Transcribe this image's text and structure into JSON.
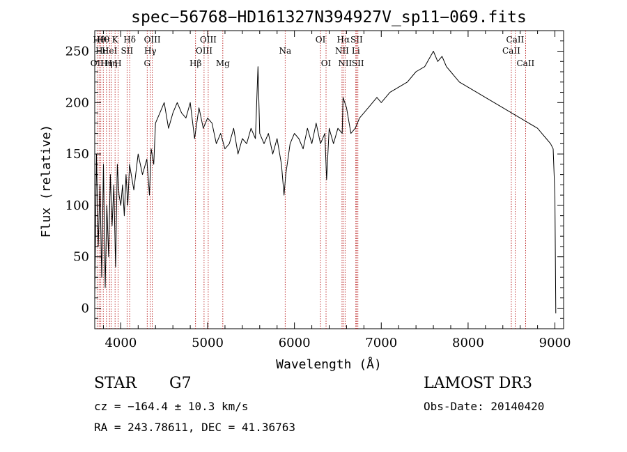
{
  "info": {
    "object_class": "STAR",
    "subclass": "G7",
    "survey": "LAMOST DR3",
    "cz": "cz = −164.4 ± 10.3 km/s",
    "obs_date": "Obs-Date: 20140420",
    "coords": "RA = 243.78611, DEC =  41.36763"
  },
  "chart_data": {
    "type": "line",
    "title": "spec−56768−HD161327N394927V_sp11−069.fits",
    "xlabel": "Wavelength (Å)",
    "ylabel": "Flux (relative)",
    "xlim": [
      3700,
      9100
    ],
    "ylim": [
      -20,
      270
    ],
    "xticks": [
      4000,
      5000,
      6000,
      7000,
      8000,
      9000
    ],
    "yticks": [
      0,
      50,
      100,
      150,
      200,
      250
    ],
    "grid": false,
    "colors": {
      "line": "#000000",
      "marker": "#b00000"
    },
    "series": [
      {
        "x": [
          3700,
          3720,
          3740,
          3760,
          3780,
          3800,
          3820,
          3840,
          3860,
          3880,
          3900,
          3920,
          3940,
          3960,
          3980,
          4000,
          4020,
          4040,
          4060,
          4080,
          4100,
          4150,
          4200,
          4250,
          4300,
          4330,
          4350,
          4380,
          4400,
          4450,
          4500,
          4550,
          4600,
          4650,
          4700,
          4750,
          4800,
          4850,
          4900,
          4950,
          5000,
          5050,
          5100,
          5150,
          5200,
          5250,
          5300,
          5350,
          5400,
          5450,
          5500,
          5550,
          5580,
          5600,
          5650,
          5700,
          5750,
          5800,
          5850,
          5880,
          5900,
          5950,
          6000,
          6050,
          6100,
          6150,
          6200,
          6250,
          6300,
          6350,
          6370,
          6400,
          6450,
          6500,
          6550,
          6560,
          6600,
          6650,
          6700,
          6750,
          6800,
          6850,
          6900,
          6950,
          7000,
          7100,
          7200,
          7300,
          7400,
          7500,
          7600,
          7650,
          7700,
          7750,
          7800,
          7850,
          7900,
          8000,
          8100,
          8200,
          8300,
          8400,
          8500,
          8600,
          8700,
          8800,
          8850,
          8900,
          8950,
          8980,
          9000,
          9010
        ],
        "values": [
          10,
          150,
          60,
          120,
          30,
          140,
          20,
          100,
          50,
          130,
          80,
          120,
          40,
          140,
          110,
          100,
          120,
          90,
          130,
          100,
          140,
          115,
          150,
          130,
          145,
          110,
          155,
          140,
          180,
          190,
          200,
          175,
          190,
          200,
          190,
          185,
          200,
          165,
          195,
          175,
          185,
          180,
          160,
          170,
          155,
          160,
          175,
          150,
          165,
          160,
          175,
          165,
          235,
          170,
          160,
          170,
          150,
          165,
          140,
          110,
          130,
          160,
          170,
          165,
          155,
          175,
          160,
          180,
          160,
          170,
          125,
          175,
          160,
          175,
          170,
          205,
          195,
          170,
          175,
          185,
          190,
          195,
          200,
          205,
          200,
          210,
          215,
          220,
          230,
          235,
          250,
          240,
          245,
          235,
          230,
          225,
          220,
          215,
          210,
          205,
          200,
          195,
          190,
          185,
          180,
          175,
          170,
          165,
          160,
          155,
          110,
          -5
        ]
      }
    ],
    "line_markers": [
      {
        "x": 3727,
        "label": "OII",
        "row": 3
      },
      {
        "x": 3750,
        "label": "Hθ",
        "row": 1
      },
      {
        "x": 3770,
        "label": "Hι",
        "row": 2
      },
      {
        "x": 3798,
        "label": "Hθ",
        "row": 1
      },
      {
        "x": 3835,
        "label": "Hη",
        "row": 3
      },
      {
        "x": 3870,
        "label": "HeI",
        "row": 2
      },
      {
        "x": 3889,
        "label": "Hη",
        "row": 3
      },
      {
        "x": 3934,
        "label": "K",
        "row": 1
      },
      {
        "x": 3968,
        "label": "H",
        "row": 3
      },
      {
        "x": 4072,
        "label": "SII",
        "row": 2
      },
      {
        "x": 4102,
        "label": "Hδ",
        "row": 1
      },
      {
        "x": 4304,
        "label": "G",
        "row": 3
      },
      {
        "x": 4340,
        "label": "Hγ",
        "row": 2
      },
      {
        "x": 4363,
        "label": "OIII",
        "row": 1
      },
      {
        "x": 4861,
        "label": "Hβ",
        "row": 3
      },
      {
        "x": 4959,
        "label": "OIII",
        "row": 2
      },
      {
        "x": 5007,
        "label": "OIII",
        "row": 1
      },
      {
        "x": 5175,
        "label": "Mg",
        "row": 3
      },
      {
        "x": 5893,
        "label": "Na",
        "row": 2
      },
      {
        "x": 6300,
        "label": "OI",
        "row": 1
      },
      {
        "x": 6364,
        "label": "OI",
        "row": 3
      },
      {
        "x": 6548,
        "label": "NII",
        "row": 2
      },
      {
        "x": 6563,
        "label": "Hα",
        "row": 1
      },
      {
        "x": 6583,
        "label": "NII",
        "row": 3
      },
      {
        "x": 6707,
        "label": "Li",
        "row": 2
      },
      {
        "x": 6716,
        "label": "SII",
        "row": 1
      },
      {
        "x": 6731,
        "label": "SII",
        "row": 3
      },
      {
        "x": 8498,
        "label": "CaII",
        "row": 2
      },
      {
        "x": 8542,
        "label": "CaII",
        "row": 1
      },
      {
        "x": 8662,
        "label": "CaII",
        "row": 3
      }
    ]
  }
}
